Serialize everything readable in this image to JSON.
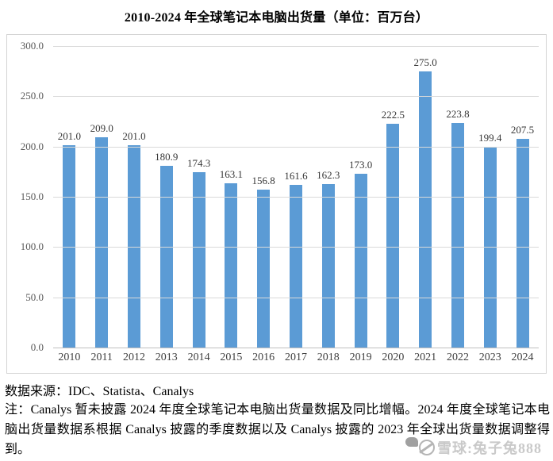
{
  "title": "2010-2024 年全球笔记本电脑出货量（单位：百万台）",
  "chart_data": {
    "type": "bar",
    "title": "2010-2024 年全球笔记本电脑出货量（单位：百万台）",
    "categories": [
      "2010",
      "2011",
      "2012",
      "2013",
      "2014",
      "2015",
      "2016",
      "2017",
      "2018",
      "2019",
      "2020",
      "2021",
      "2022",
      "2023",
      "2024"
    ],
    "values": [
      201.0,
      209.0,
      201.0,
      180.9,
      174.3,
      163.1,
      156.8,
      161.6,
      162.3,
      173.0,
      222.5,
      275.0,
      223.8,
      199.4,
      207.5
    ],
    "value_labels": [
      "201.0",
      "209.0",
      "201.0",
      "180.9",
      "174.3",
      "163.1",
      "156.8",
      "161.6",
      "162.3",
      "173.0",
      "222.5",
      "275.0",
      "223.8",
      "199.4",
      "207.5"
    ],
    "xlabel": "",
    "ylabel": "",
    "ylim": [
      0,
      300
    ],
    "ytick_interval": 50,
    "ytick_labels_top_down": [
      "300.0",
      "250.0",
      "200.0",
      "150.0",
      "100.0",
      "50.0",
      "0.0"
    ],
    "grid": true,
    "legend": "none",
    "bar_color": "#5B9BD5"
  },
  "footer": {
    "source": "数据来源：IDC、Statista、Canalys",
    "note": "注：Canalys 暂未披露 2024 年度全球笔记本电脑出货量数据及同比增幅。2024 年度全球笔记本电脑出货量数据系根据 Canalys 披露的季度数据以及 Canalys 披露的 2023 年全球出货量数据调整得到。"
  },
  "watermark": {
    "text": "雪球:兔子兔888",
    "icon": "xueqiu-logo"
  },
  "colors": {
    "bar": "#5B9BD5",
    "gridline": "#d9d9d9",
    "axis_baseline": "#bfbfbf",
    "tick_label": "#595959",
    "frame_border": "#d4d4d4",
    "watermark_text": "#c9c9c9"
  }
}
